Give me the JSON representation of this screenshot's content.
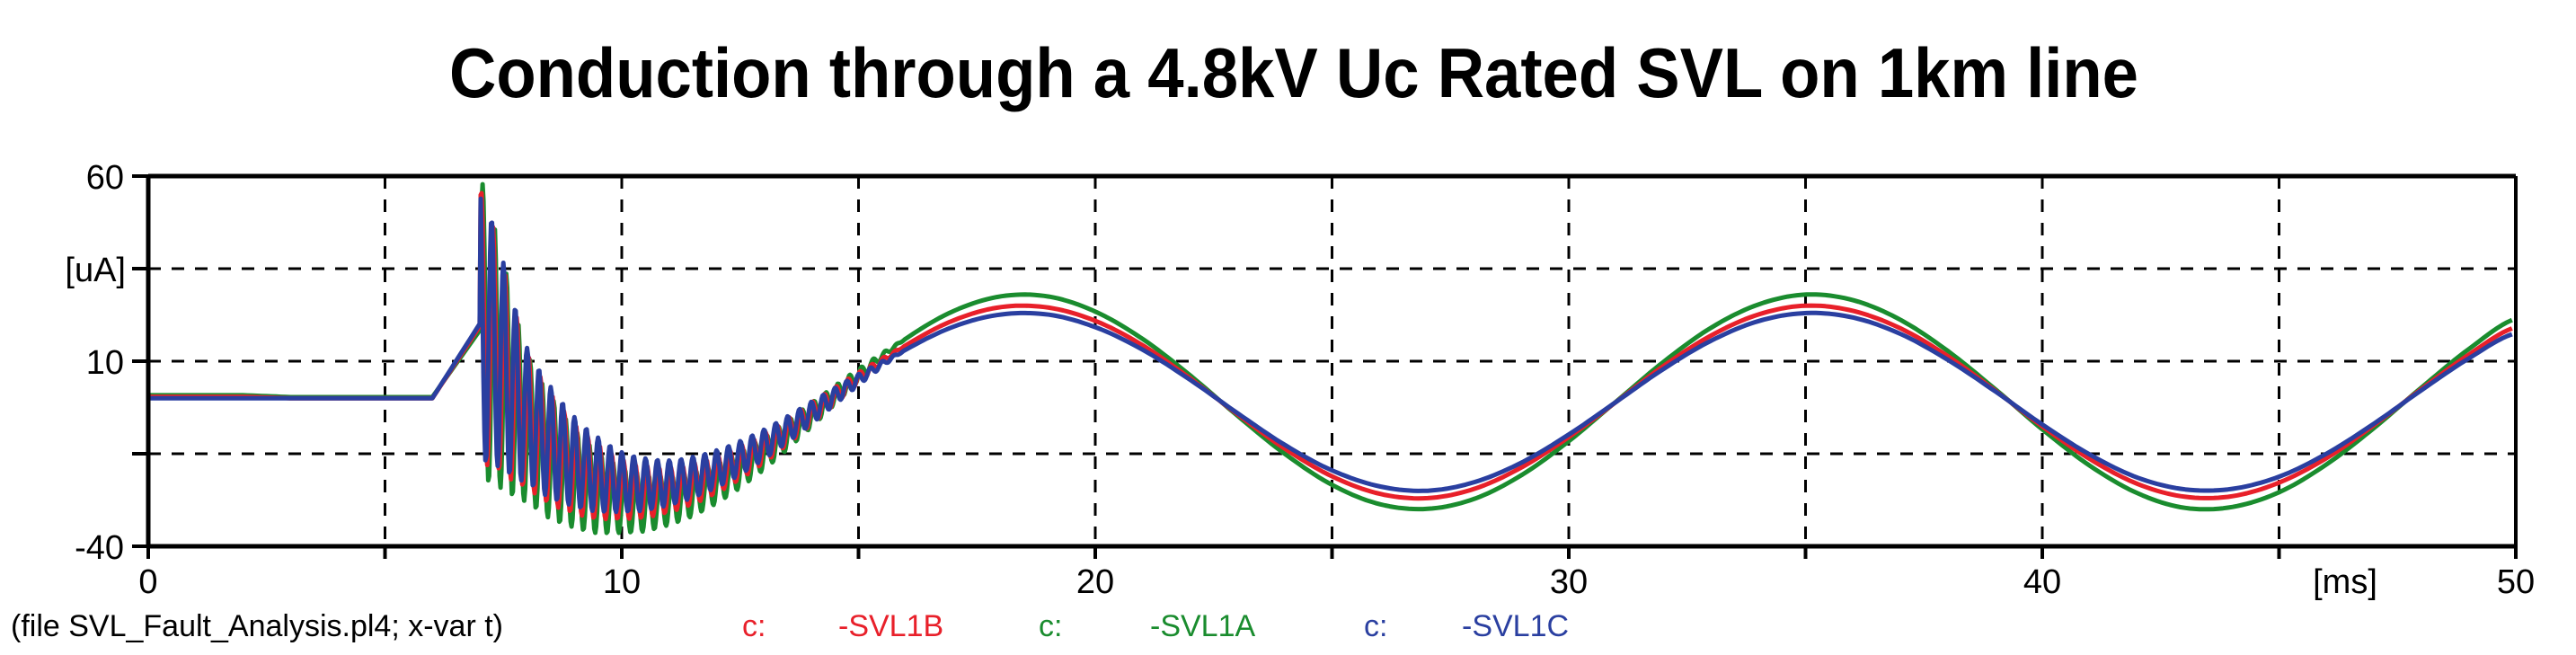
{
  "chart_data": {
    "type": "line",
    "title": "Conduction through a 4.8kV Uc Rated SVL on 1km line",
    "xlabel": "[ms]",
    "ylabel": "[uA]",
    "xlim": [
      0,
      50
    ],
    "ylim": [
      -40,
      60
    ],
    "x_ticks": [
      0,
      5,
      10,
      15,
      20,
      25,
      30,
      35,
      40,
      45,
      50
    ],
    "x_tick_labels": [
      "0",
      "10",
      "20",
      "30",
      "40",
      "50"
    ],
    "y_ticks": [
      60,
      35,
      10,
      -15,
      -40
    ],
    "y_tick_labels": [
      "60",
      "10",
      "-40"
    ],
    "grid": true,
    "footer": "(file SVL_Fault_Analysis.pl4; x-var t)",
    "x": [
      0,
      1,
      2,
      3,
      4,
      5,
      6,
      7,
      8,
      9,
      10,
      11,
      12,
      13,
      14,
      15,
      16,
      17,
      18,
      19,
      20,
      21,
      22,
      23,
      24,
      25,
      26,
      27,
      28,
      29,
      30,
      31,
      32,
      33,
      34,
      35,
      36,
      37,
      38,
      39,
      40,
      41,
      42,
      43,
      44,
      45,
      46,
      47,
      48,
      49,
      50
    ],
    "transient": {
      "start_ms": 7,
      "oscillation_period_ms": 0.25,
      "amplitude_x": [
        7,
        8,
        9,
        10,
        11,
        12,
        13,
        14,
        15,
        16
      ],
      "amplitude": [
        38,
        18,
        12,
        8,
        6,
        5,
        4,
        3,
        1.5,
        0
      ]
    },
    "series": [
      {
        "name": "-SVL1A",
        "prefix": "c:",
        "color": "#1a8c2e",
        "values": [
          0.8,
          0.8,
          0.8,
          0.3,
          0.3,
          0.3,
          0.3,
          18.3,
          -7.9,
          -21.7,
          -27.5,
          -27.6,
          -22.9,
          -14.9,
          -4.6,
          6.3,
          16.1,
          23.5,
          27.5,
          27.5,
          23.4,
          16.0,
          6.2,
          -4.7,
          -15.0,
          -23.4,
          -28.6,
          -29.9,
          -27.2,
          -20.8,
          -11.6,
          -0.9,
          9.8,
          19.0,
          25.3,
          28.0,
          26.5,
          21.2,
          12.8,
          2.5,
          -8.4,
          -18.2,
          -25.6,
          -29.6,
          -29.4,
          -25.4,
          -17.9,
          -8.1,
          2.8,
          13.2,
          21.5
        ]
      },
      {
        "name": "-SVL1B",
        "prefix": "c:",
        "color": "#e8202a",
        "values": [
          0.4,
          0.4,
          0.4,
          0,
          0,
          0,
          0,
          19.4,
          -5.8,
          -19.0,
          -24.5,
          -24.7,
          -20.6,
          -13.5,
          -4.2,
          5.5,
          14.3,
          21.0,
          24.6,
          24.5,
          20.9,
          14.3,
          5.4,
          -4.3,
          -13.6,
          -21.1,
          -25.8,
          -27.0,
          -24.5,
          -18.7,
          -10.5,
          -1.0,
          8.7,
          16.9,
          22.6,
          25.0,
          23.6,
          18.9,
          11.4,
          2.1,
          -7.6,
          -16.4,
          -23.1,
          -26.6,
          -26.5,
          -22.8,
          -16.2,
          -7.3,
          2.4,
          11.7,
          19.2
        ]
      },
      {
        "name": "-SVL1C",
        "prefix": "c:",
        "color": "#2a3fa0",
        "values": [
          0,
          0,
          0,
          0,
          0,
          0,
          0,
          20.1,
          -4.4,
          -17.1,
          -22.6,
          -22.8,
          -19.1,
          -12.5,
          -4.0,
          5.0,
          13.1,
          19.3,
          22.6,
          22.6,
          19.2,
          13.1,
          5.0,
          -4.0,
          -12.6,
          -19.5,
          -23.8,
          -25.0,
          -22.7,
          -17.4,
          -9.8,
          -1.0,
          7.9,
          15.5,
          20.8,
          23.0,
          21.8,
          17.4,
          10.4,
          1.9,
          -7.1,
          -15.2,
          -21.4,
          -24.6,
          -24.5,
          -21.2,
          -15.0,
          -6.9,
          2.1,
          10.7,
          17.6
        ]
      }
    ]
  }
}
